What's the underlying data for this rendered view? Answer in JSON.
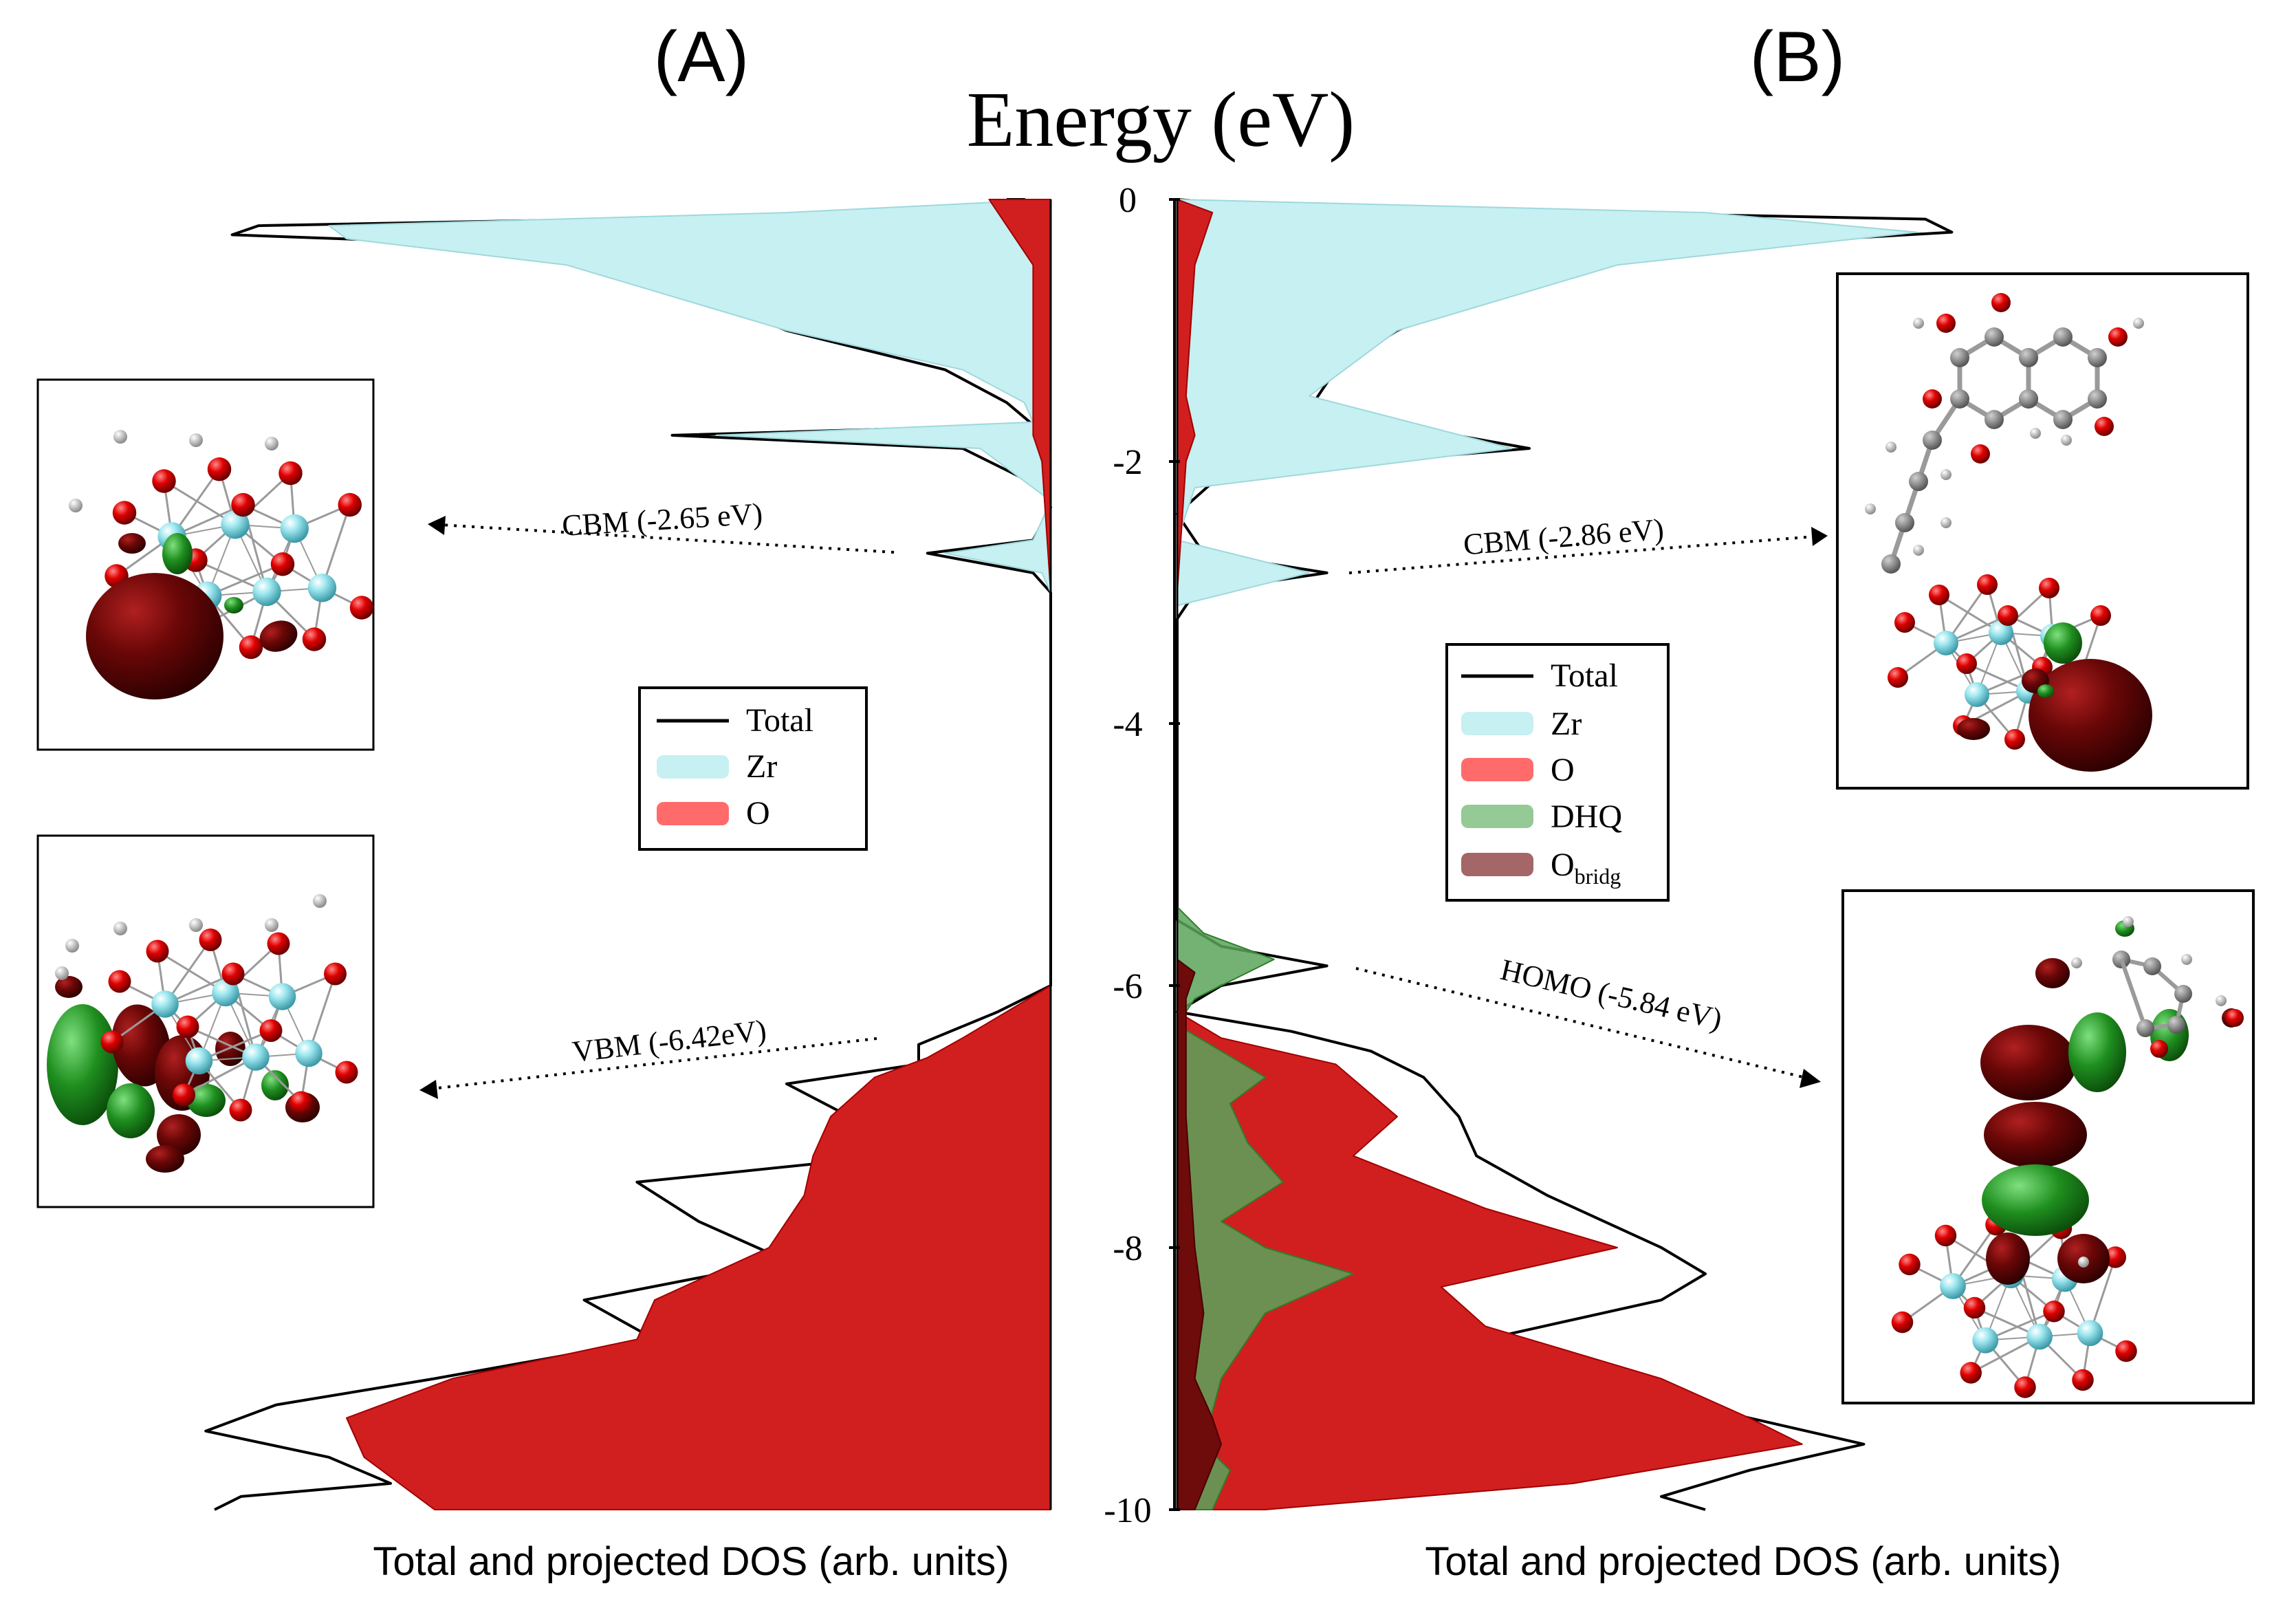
{
  "chart_data": {
    "type": "area",
    "title": "Energy (eV)",
    "y_axis": {
      "label": "Energy (eV)",
      "range": [
        -10,
        0
      ],
      "ticks": [
        {
          "value": 0,
          "label": "0"
        },
        {
          "value": -2,
          "label": "-2"
        },
        {
          "value": -4,
          "label": "-4"
        },
        {
          "value": -6,
          "label": "-6"
        },
        {
          "value": -8,
          "label": "-8"
        },
        {
          "value": -10,
          "label": "-10"
        }
      ]
    },
    "colors": {
      "total": "#000000",
      "zr": "#c6f0f2",
      "o": "#d11f1f",
      "o_legend": "#ff6b6b",
      "dhq": "#5aa55a",
      "dhq_legend": "#95c995",
      "obridg": "#6e0b0b",
      "obridg_legend": "#a46666"
    },
    "panels": [
      {
        "id": "A",
        "label": "(A)",
        "xlabel": "Total and projected DOS (arb. units)",
        "legend": [
          {
            "key": "total",
            "label": "Total"
          },
          {
            "key": "zr",
            "label": "Zr"
          },
          {
            "key": "o",
            "label": "O"
          }
        ],
        "annotations": [
          {
            "text": "CBM (-2.65 eV)",
            "energy": -2.65
          },
          {
            "text": "VBM  (-6.42eV)",
            "energy": -6.42
          }
        ],
        "series": [
          {
            "name": "Total",
            "type": "line",
            "points": [
              [
                0.0,
                0.05
              ],
              [
                0.0,
                0.03
              ],
              [
                -0.1,
                0.1
              ],
              [
                -0.2,
                0.9
              ],
              [
                -0.27,
                0.93
              ],
              [
                -0.35,
                0.6
              ],
              [
                -0.6,
                0.45
              ],
              [
                -1.0,
                0.3
              ],
              [
                -1.3,
                0.12
              ],
              [
                -1.55,
                0.05
              ],
              [
                -1.72,
                0.02
              ],
              [
                -1.8,
                0.43
              ],
              [
                -1.9,
                0.1
              ],
              [
                -2.2,
                0.01
              ],
              [
                -2.35,
                0.0
              ],
              [
                -2.6,
                0.02
              ],
              [
                -2.7,
                0.14
              ],
              [
                -2.85,
                0.02
              ],
              [
                -3.0,
                0.0
              ],
              [
                -6.0,
                0.0
              ],
              [
                -6.2,
                0.06
              ],
              [
                -6.45,
                0.15
              ],
              [
                -6.6,
                0.15
              ],
              [
                -6.75,
                0.3
              ],
              [
                -7.1,
                0.2
              ],
              [
                -7.3,
                0.18
              ],
              [
                -7.5,
                0.47
              ],
              [
                -7.8,
                0.4
              ],
              [
                -8.1,
                0.3
              ],
              [
                -8.4,
                0.53
              ],
              [
                -8.7,
                0.45
              ],
              [
                -9.0,
                0.7
              ],
              [
                -9.2,
                0.88
              ],
              [
                -9.4,
                0.96
              ],
              [
                -9.6,
                0.82
              ],
              [
                -9.8,
                0.75
              ],
              [
                -9.9,
                0.92
              ],
              [
                -10.0,
                0.95
              ]
            ]
          },
          {
            "name": "Zr",
            "type": "area",
            "points": [
              [
                0.0,
                0.0
              ],
              [
                -0.1,
                0.3
              ],
              [
                -0.2,
                0.82
              ],
              [
                -0.3,
                0.8
              ],
              [
                -0.5,
                0.55
              ],
              [
                -1.0,
                0.3
              ],
              [
                -1.3,
                0.1
              ],
              [
                -1.55,
                0.03
              ],
              [
                -1.7,
                0.02
              ],
              [
                -1.8,
                0.38
              ],
              [
                -1.9,
                0.08
              ],
              [
                -2.3,
                0.0
              ],
              [
                -2.6,
                0.02
              ],
              [
                -2.7,
                0.12
              ],
              [
                -2.85,
                0.01
              ],
              [
                -3.0,
                0.0
              ],
              [
                -6.0,
                0.0
              ],
              [
                -6.2,
                0.03
              ],
              [
                -6.6,
                0.03
              ],
              [
                -7.0,
                0.06
              ],
              [
                -7.5,
                0.05
              ],
              [
                -8.0,
                0.07
              ],
              [
                -8.5,
                0.06
              ],
              [
                -9.0,
                0.1
              ],
              [
                -9.5,
                0.12
              ],
              [
                -10.0,
                0.12
              ]
            ]
          },
          {
            "name": "O",
            "type": "area",
            "points": [
              [
                0.0,
                0.0
              ],
              [
                0.0,
                0.07
              ],
              [
                -0.2,
                0.05
              ],
              [
                -0.5,
                0.02
              ],
              [
                -1.5,
                0.02
              ],
              [
                -1.8,
                0.02
              ],
              [
                -2.0,
                0.01
              ],
              [
                -3.0,
                0.0
              ],
              [
                -6.0,
                0.0
              ],
              [
                -6.2,
                0.05
              ],
              [
                -6.4,
                0.1
              ],
              [
                -6.55,
                0.14
              ],
              [
                -6.7,
                0.2
              ],
              [
                -7.0,
                0.25
              ],
              [
                -7.3,
                0.27
              ],
              [
                -7.6,
                0.28
              ],
              [
                -8.0,
                0.32
              ],
              [
                -8.4,
                0.45
              ],
              [
                -8.7,
                0.47
              ],
              [
                -9.0,
                0.68
              ],
              [
                -9.3,
                0.8
              ],
              [
                -9.6,
                0.78
              ],
              [
                -10.0,
                0.7
              ]
            ]
          }
        ]
      },
      {
        "id": "B",
        "label": "(B)",
        "xlabel": "Total and projected DOS (arb. units)",
        "legend": [
          {
            "key": "total",
            "label": "Total"
          },
          {
            "key": "zr",
            "label": "Zr"
          },
          {
            "key": "o",
            "label": "O"
          },
          {
            "key": "dhq",
            "label": "DHQ"
          },
          {
            "key": "obridg",
            "label": "O",
            "subscript": "bridg"
          }
        ],
        "annotations": [
          {
            "text": "CBM (-2.86 eV)",
            "energy": -2.86
          },
          {
            "text": "HOMO  (-5.84 eV)",
            "energy": -5.84
          }
        ],
        "series": [
          {
            "name": "Total",
            "type": "line",
            "points": [
              [
                0.0,
                0.0
              ],
              [
                -0.05,
                0.1
              ],
              [
                -0.15,
                0.85
              ],
              [
                -0.25,
                0.88
              ],
              [
                -0.4,
                0.5
              ],
              [
                -0.7,
                0.35
              ],
              [
                -1.0,
                0.25
              ],
              [
                -1.3,
                0.18
              ],
              [
                -1.6,
                0.15
              ],
              [
                -1.9,
                0.4
              ],
              [
                -2.1,
                0.05
              ],
              [
                -2.4,
                0.0
              ],
              [
                -2.7,
                0.03
              ],
              [
                -2.85,
                0.17
              ],
              [
                -3.0,
                0.02
              ],
              [
                -3.2,
                0.0
              ],
              [
                -5.5,
                0.0
              ],
              [
                -5.7,
                0.05
              ],
              [
                -5.85,
                0.17
              ],
              [
                -6.0,
                0.05
              ],
              [
                -6.2,
                0.0
              ],
              [
                -6.35,
                0.13
              ],
              [
                -6.5,
                0.22
              ],
              [
                -6.7,
                0.28
              ],
              [
                -7.0,
                0.32
              ],
              [
                -7.3,
                0.34
              ],
              [
                -7.6,
                0.42
              ],
              [
                -8.0,
                0.55
              ],
              [
                -8.2,
                0.6
              ],
              [
                -8.4,
                0.55
              ],
              [
                -8.7,
                0.35
              ],
              [
                -9.0,
                0.45
              ],
              [
                -9.3,
                0.65
              ],
              [
                -9.5,
                0.78
              ],
              [
                -9.7,
                0.65
              ],
              [
                -9.9,
                0.55
              ],
              [
                -10.0,
                0.6
              ]
            ]
          },
          {
            "name": "Zr",
            "type": "area",
            "points": [
              [
                0.0,
                0.0
              ],
              [
                -0.1,
                0.6
              ],
              [
                -0.25,
                0.84
              ],
              [
                -0.5,
                0.5
              ],
              [
                -1.0,
                0.25
              ],
              [
                -1.5,
                0.15
              ],
              [
                -1.9,
                0.38
              ],
              [
                -2.2,
                0.02
              ],
              [
                -2.6,
                0.0
              ],
              [
                -2.85,
                0.15
              ],
              [
                -3.1,
                0.0
              ],
              [
                -6.2,
                0.0
              ],
              [
                -6.5,
                0.02
              ],
              [
                -7.0,
                0.04
              ],
              [
                -8.0,
                0.05
              ],
              [
                -8.5,
                0.06
              ],
              [
                -9.0,
                0.09
              ],
              [
                -9.5,
                0.1
              ],
              [
                -10.0,
                0.08
              ]
            ]
          },
          {
            "name": "O",
            "type": "area",
            "points": [
              [
                0.0,
                0.0
              ],
              [
                -0.1,
                0.04
              ],
              [
                -0.5,
                0.02
              ],
              [
                -1.5,
                0.01
              ],
              [
                -1.8,
                0.02
              ],
              [
                -2.0,
                0.01
              ],
              [
                -3.0,
                0.0
              ],
              [
                -6.2,
                0.0
              ],
              [
                -6.4,
                0.05
              ],
              [
                -6.6,
                0.18
              ],
              [
                -7.0,
                0.25
              ],
              [
                -7.3,
                0.2
              ],
              [
                -7.7,
                0.35
              ],
              [
                -8.0,
                0.5
              ],
              [
                -8.3,
                0.3
              ],
              [
                -8.6,
                0.35
              ],
              [
                -9.0,
                0.55
              ],
              [
                -9.3,
                0.65
              ],
              [
                -9.5,
                0.71
              ],
              [
                -9.8,
                0.45
              ],
              [
                -10.0,
                0.1
              ]
            ]
          },
          {
            "name": "DHQ",
            "type": "area",
            "points": [
              [
                0.0,
                0.0
              ],
              [
                -5.4,
                0.0
              ],
              [
                -5.6,
                0.03
              ],
              [
                -5.8,
                0.11
              ],
              [
                -5.9,
                0.08
              ],
              [
                -6.1,
                0.02
              ],
              [
                -6.3,
                0.0
              ],
              [
                -6.5,
                0.05
              ],
              [
                -6.7,
                0.1
              ],
              [
                -6.9,
                0.06
              ],
              [
                -7.2,
                0.08
              ],
              [
                -7.5,
                0.12
              ],
              [
                -7.8,
                0.05
              ],
              [
                -8.0,
                0.1
              ],
              [
                -8.2,
                0.2
              ],
              [
                -8.5,
                0.1
              ],
              [
                -9.0,
                0.05
              ],
              [
                -9.5,
                0.03
              ],
              [
                -9.7,
                0.06
              ],
              [
                -10.0,
                0.04
              ]
            ]
          },
          {
            "name": "Obridg",
            "type": "area",
            "points": [
              [
                0.0,
                0.0
              ],
              [
                -5.8,
                0.0
              ],
              [
                -5.9,
                0.02
              ],
              [
                -6.1,
                0.01
              ],
              [
                -6.5,
                0.01
              ],
              [
                -7.0,
                0.01
              ],
              [
                -8.0,
                0.02
              ],
              [
                -8.5,
                0.03
              ],
              [
                -9.0,
                0.02
              ],
              [
                -9.3,
                0.04
              ],
              [
                -9.5,
                0.05
              ],
              [
                -10.0,
                0.02
              ]
            ]
          }
        ]
      }
    ]
  }
}
